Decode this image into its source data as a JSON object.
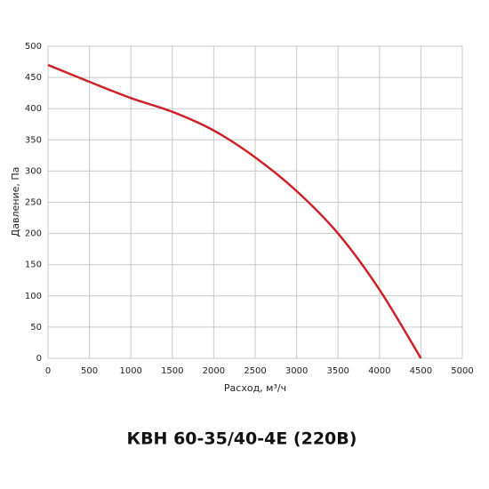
{
  "chart_data": {
    "type": "line",
    "title": "КВН 60-35/40-4E (220B)",
    "x_label": "Расход, м³/ч",
    "y_label": "Давление, Па",
    "x": [
      0,
      500,
      1000,
      1500,
      2000,
      2500,
      3000,
      3500,
      4000,
      4500
    ],
    "series": [
      {
        "name": "КВН 60-35/40-4E (220B)",
        "color": "#cc2229",
        "values": [
          470,
          443,
          417,
          395,
          365,
          322,
          268,
          200,
          110,
          0
        ]
      }
    ],
    "xlim": [
      0,
      5000
    ],
    "xticks": [
      0,
      500,
      1000,
      1500,
      2000,
      2500,
      3000,
      3500,
      4000,
      4500,
      5000
    ],
    "ylim": [
      0,
      500
    ],
    "yticks": [
      0,
      50,
      100,
      150,
      200,
      250,
      300,
      350,
      400,
      450,
      500
    ],
    "grid": true
  }
}
